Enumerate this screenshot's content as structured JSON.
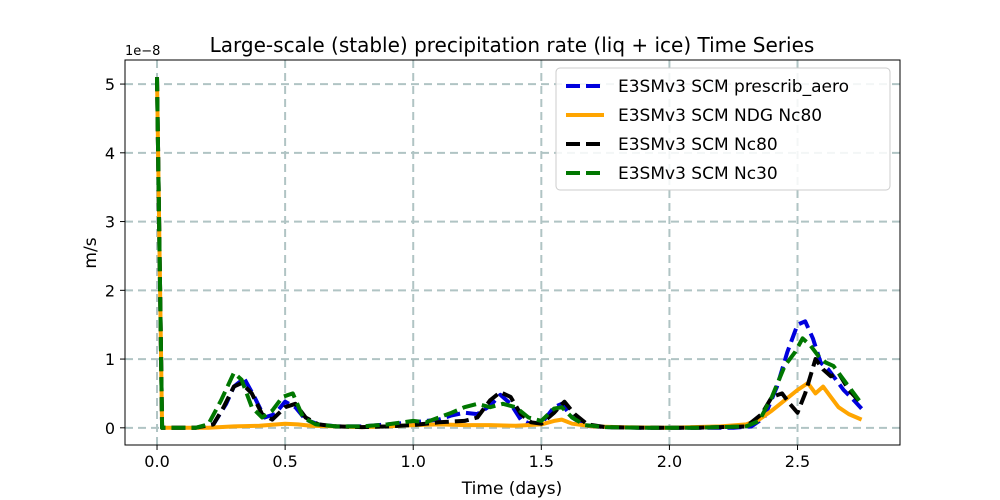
{
  "chart_data": {
    "type": "line",
    "title": "Large-scale (stable) precipitation rate (liq + ice) Time Series",
    "xlabel": "Time (days)",
    "ylabel": "m/s",
    "y_offset_label": "1e−8",
    "xlim": [
      -0.125,
      2.9
    ],
    "ylim": [
      -0.25,
      5.35
    ],
    "grid": true,
    "legend_position": "top-right",
    "x_ticks": [
      0.0,
      0.5,
      1.0,
      1.5,
      2.0,
      2.5
    ],
    "x_tick_labels": [
      "0.0",
      "0.5",
      "1.0",
      "1.5",
      "2.0",
      "2.5"
    ],
    "y_ticks": [
      0,
      1,
      2,
      3,
      4,
      5
    ],
    "y_tick_labels": [
      "0",
      "1",
      "2",
      "3",
      "4",
      "5"
    ],
    "series": [
      {
        "name": "E3SMv3 SCM prescrib_aero",
        "color": "#0000dd",
        "style": "dashed",
        "x": [
          0.0,
          0.02,
          0.15,
          0.22,
          0.27,
          0.3,
          0.34,
          0.38,
          0.42,
          0.46,
          0.5,
          0.54,
          0.58,
          0.63,
          0.7,
          0.8,
          0.9,
          1.0,
          1.1,
          1.15,
          1.2,
          1.25,
          1.3,
          1.34,
          1.38,
          1.42,
          1.46,
          1.5,
          1.55,
          1.58,
          1.62,
          1.67,
          1.75,
          1.9,
          2.1,
          2.25,
          2.32,
          2.37,
          2.42,
          2.46,
          2.5,
          2.53,
          2.56,
          2.59,
          2.62,
          2.65,
          2.68,
          2.72,
          2.75
        ],
        "values": [
          5.1,
          0.0,
          0.0,
          0.05,
          0.35,
          0.6,
          0.72,
          0.45,
          0.15,
          0.2,
          0.38,
          0.3,
          0.12,
          0.05,
          0.02,
          0.02,
          0.05,
          0.08,
          0.12,
          0.18,
          0.22,
          0.2,
          0.32,
          0.48,
          0.35,
          0.12,
          0.05,
          0.06,
          0.3,
          0.35,
          0.15,
          0.03,
          0.01,
          0.0,
          0.0,
          0.0,
          0.02,
          0.15,
          0.6,
          1.1,
          1.5,
          1.55,
          1.3,
          0.95,
          0.85,
          0.7,
          0.55,
          0.4,
          0.28
        ]
      },
      {
        "name": "E3SMv3 SCM NDG Nc80",
        "color": "#ffa500",
        "style": "solid",
        "x": [
          0.0,
          0.02,
          0.1,
          0.2,
          0.3,
          0.4,
          0.5,
          0.55,
          0.6,
          0.7,
          0.8,
          0.9,
          1.0,
          1.1,
          1.2,
          1.3,
          1.4,
          1.5,
          1.55,
          1.58,
          1.62,
          1.7,
          1.8,
          2.0,
          2.2,
          2.3,
          2.35,
          2.4,
          2.45,
          2.5,
          2.54,
          2.57,
          2.6,
          2.63,
          2.66,
          2.7,
          2.75
        ],
        "values": [
          5.1,
          0.0,
          0.0,
          0.0,
          0.02,
          0.03,
          0.06,
          0.05,
          0.03,
          0.02,
          0.01,
          0.02,
          0.04,
          0.05,
          0.04,
          0.04,
          0.03,
          0.05,
          0.1,
          0.12,
          0.06,
          0.02,
          0.01,
          0.0,
          0.02,
          0.05,
          0.12,
          0.25,
          0.4,
          0.55,
          0.65,
          0.5,
          0.6,
          0.45,
          0.3,
          0.2,
          0.12
        ]
      },
      {
        "name": "E3SMv3 SCM Nc80",
        "color": "#000000",
        "style": "dashed",
        "x": [
          0.0,
          0.02,
          0.15,
          0.22,
          0.26,
          0.3,
          0.33,
          0.37,
          0.41,
          0.45,
          0.5,
          0.54,
          0.58,
          0.63,
          0.7,
          0.8,
          0.9,
          1.0,
          1.1,
          1.2,
          1.25,
          1.3,
          1.34,
          1.38,
          1.42,
          1.46,
          1.5,
          1.55,
          1.59,
          1.63,
          1.68,
          1.75,
          1.9,
          2.1,
          2.3,
          2.36,
          2.4,
          2.44,
          2.47,
          2.5,
          2.53,
          2.57,
          2.6,
          2.63,
          2.66,
          2.7,
          2.75
        ],
        "values": [
          5.1,
          0.0,
          0.0,
          0.05,
          0.3,
          0.6,
          0.65,
          0.5,
          0.2,
          0.12,
          0.3,
          0.35,
          0.15,
          0.05,
          0.02,
          0.01,
          0.02,
          0.04,
          0.08,
          0.1,
          0.15,
          0.4,
          0.52,
          0.45,
          0.2,
          0.08,
          0.06,
          0.22,
          0.38,
          0.2,
          0.05,
          0.01,
          0.0,
          0.0,
          0.02,
          0.2,
          0.45,
          0.5,
          0.35,
          0.22,
          0.5,
          1.0,
          0.85,
          0.75,
          0.8,
          0.55,
          0.35
        ]
      },
      {
        "name": "E3SMv3 SCM Nc30",
        "color": "#007700",
        "style": "dashed",
        "x": [
          0.0,
          0.02,
          0.15,
          0.2,
          0.25,
          0.3,
          0.33,
          0.37,
          0.41,
          0.45,
          0.49,
          0.53,
          0.57,
          0.62,
          0.7,
          0.8,
          0.9,
          1.0,
          1.05,
          1.1,
          1.15,
          1.2,
          1.25,
          1.3,
          1.35,
          1.4,
          1.45,
          1.5,
          1.55,
          1.58,
          1.62,
          1.67,
          1.75,
          1.9,
          2.1,
          2.3,
          2.35,
          2.4,
          2.45,
          2.49,
          2.52,
          2.55,
          2.58,
          2.61,
          2.64,
          2.68,
          2.72,
          2.75
        ],
        "values": [
          5.1,
          0.0,
          0.0,
          0.05,
          0.4,
          0.8,
          0.7,
          0.3,
          0.15,
          0.25,
          0.45,
          0.5,
          0.15,
          0.05,
          0.02,
          0.02,
          0.05,
          0.1,
          0.08,
          0.15,
          0.22,
          0.3,
          0.35,
          0.3,
          0.35,
          0.3,
          0.15,
          0.1,
          0.28,
          0.3,
          0.15,
          0.04,
          0.01,
          0.0,
          0.0,
          0.02,
          0.1,
          0.45,
          0.9,
          1.1,
          1.3,
          1.2,
          1.05,
          0.95,
          0.9,
          0.7,
          0.5,
          0.35
        ]
      }
    ]
  }
}
